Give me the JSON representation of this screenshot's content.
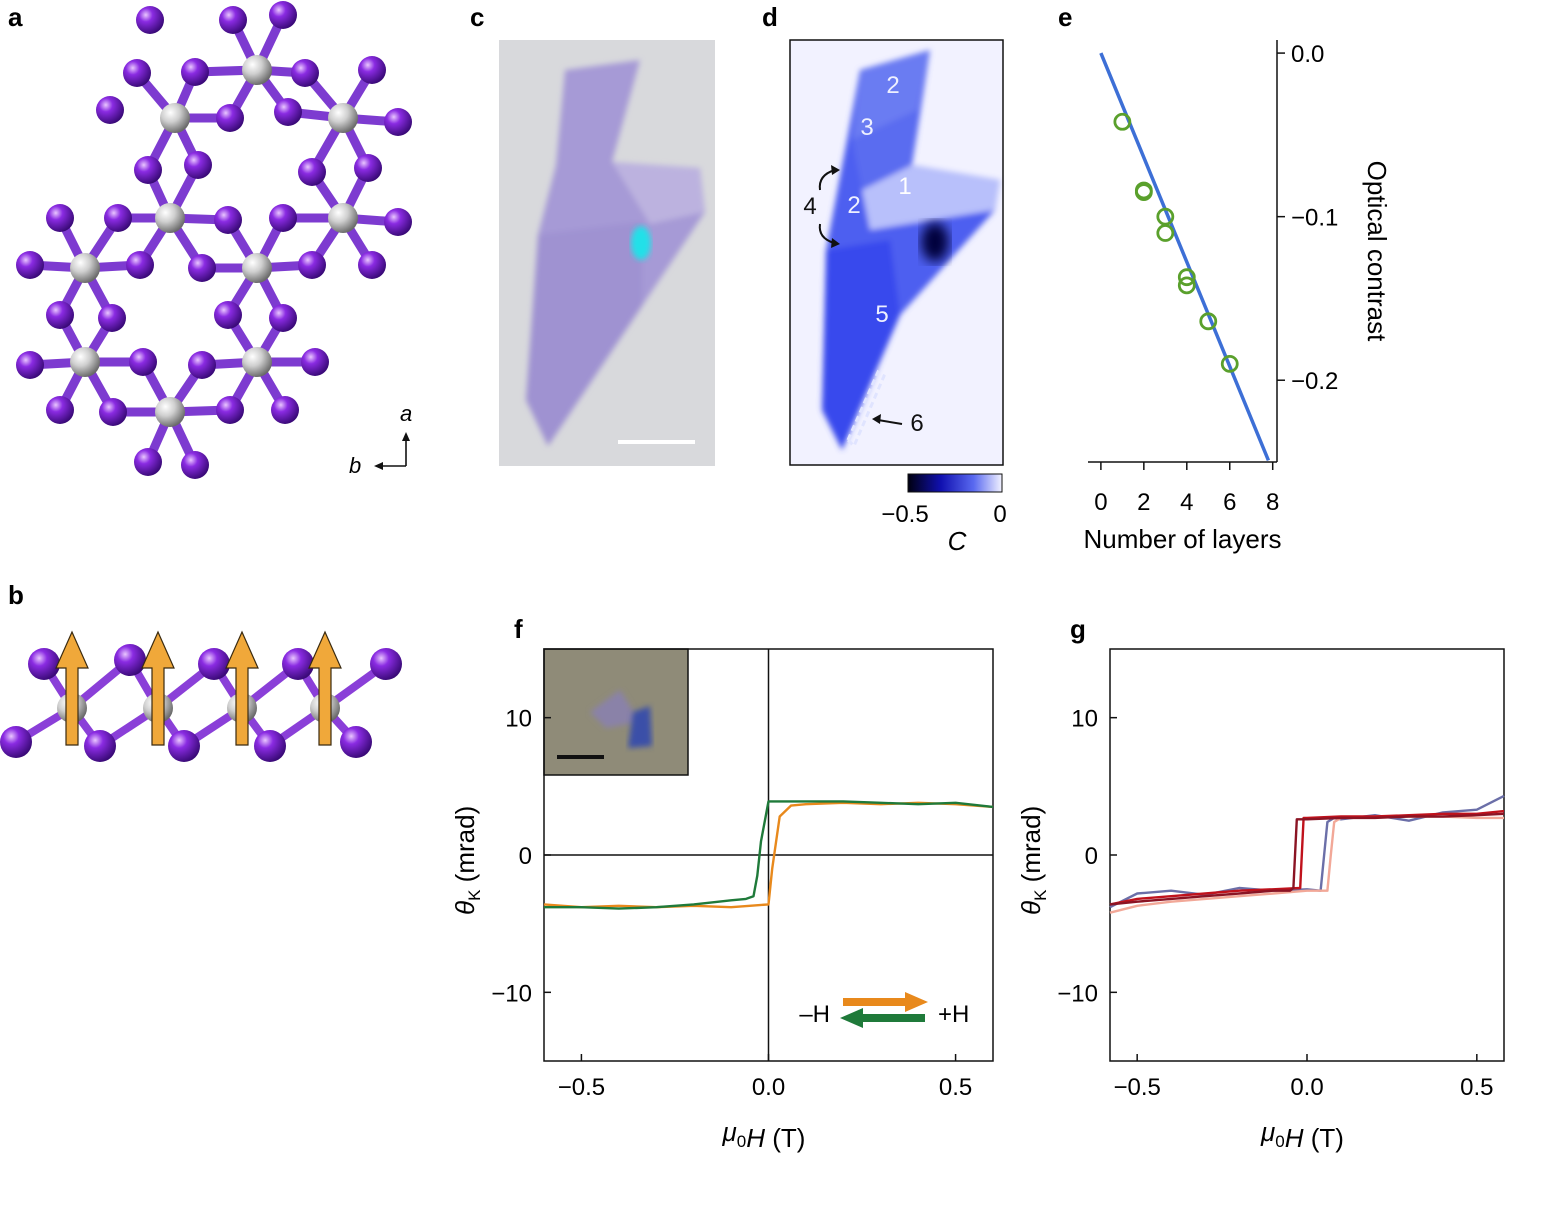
{
  "panel_labels": {
    "a": "a",
    "b": "b",
    "c": "c",
    "d": "d",
    "e": "e",
    "f": "f",
    "g": "g"
  },
  "panel_a": {
    "axis_a": "a",
    "axis_b": "b"
  },
  "panel_d": {
    "region_labels": [
      "2",
      "3",
      "1",
      "2",
      "4",
      "5",
      "6"
    ],
    "colorbar_ticks": [
      "−0.5",
      "0"
    ],
    "colorbar_label": "C"
  },
  "colors": {
    "iodine": "#7a22d6",
    "chromium": "#c8c8c8",
    "spin_arrow": "#f0a83a",
    "fit_line": "#3d6fd6",
    "marker": "#5aa02c",
    "sweep_up": "#e8891c",
    "sweep_down": "#1f7a3a"
  },
  "chart_data": [
    {
      "panel": "e",
      "type": "scatter",
      "xlabel": "Number of layers",
      "ylabel": "Optical contrast",
      "xlim": [
        -0.6,
        8.2
      ],
      "ylim": [
        -0.25,
        0.008
      ],
      "xticks": [
        "0",
        "2",
        "4",
        "6",
        "8"
      ],
      "yticks": [
        "0.0",
        "−0.1",
        "−0.2"
      ],
      "points": {
        "x": [
          1,
          2,
          2,
          3,
          3,
          4,
          4,
          5,
          6
        ],
        "y": [
          -0.042,
          -0.084,
          -0.085,
          -0.1,
          -0.11,
          -0.137,
          -0.142,
          -0.164,
          -0.19
        ]
      },
      "fit_line": {
        "x": [
          0,
          7.8
        ],
        "y": [
          0.0,
          -0.249
        ]
      }
    },
    {
      "panel": "f",
      "type": "line",
      "xlabel": "μ0H (T)",
      "ylabel": "θK (mrad)",
      "xlim": [
        -0.6,
        0.6
      ],
      "ylim": [
        -15,
        15
      ],
      "xticks": [
        "−0.5",
        "0.0",
        "0.5"
      ],
      "yticks": [
        "10",
        "0",
        "−10"
      ],
      "legend": {
        "left": "–H",
        "right": "+H"
      },
      "series": [
        {
          "x": [
            -0.6,
            -0.5,
            -0.4,
            -0.3,
            -0.2,
            -0.1,
            -0.05,
            0.0,
            0.01,
            0.03,
            0.06,
            0.1,
            0.2,
            0.3,
            0.4,
            0.5,
            0.6
          ],
          "y": [
            -3.6,
            -3.8,
            -3.7,
            -3.8,
            -3.7,
            -3.8,
            -3.7,
            -3.6,
            -1.0,
            2.8,
            3.6,
            3.7,
            3.8,
            3.7,
            3.8,
            3.7,
            3.5
          ]
        },
        {
          "x": [
            0.6,
            0.5,
            0.4,
            0.3,
            0.2,
            0.1,
            0.05,
            0.0,
            -0.02,
            -0.03,
            -0.04,
            -0.06,
            -0.1,
            -0.2,
            -0.3,
            -0.4,
            -0.5,
            -0.6
          ],
          "y": [
            3.5,
            3.8,
            3.7,
            3.8,
            3.9,
            3.9,
            3.9,
            3.9,
            1.0,
            -1.5,
            -3.0,
            -3.2,
            -3.3,
            -3.6,
            -3.8,
            -3.9,
            -3.8,
            -3.8
          ]
        }
      ]
    },
    {
      "panel": "g",
      "type": "line",
      "xlabel": "μ0H (T)",
      "ylabel": "θK (mrad)",
      "xlim": [
        -0.58,
        0.58
      ],
      "ylim": [
        -15,
        15
      ],
      "xticks": [
        "−0.5",
        "0.0",
        "0.5"
      ],
      "yticks": [
        "10",
        "0",
        "−10"
      ],
      "series": [
        {
          "color": "#6b6fa8",
          "x": [
            -0.58,
            -0.5,
            -0.4,
            -0.3,
            -0.2,
            -0.1,
            0.0,
            0.04,
            0.06,
            0.08,
            0.1,
            0.2,
            0.3,
            0.4,
            0.5,
            0.58
          ],
          "y": [
            -3.8,
            -2.8,
            -2.6,
            -2.9,
            -2.4,
            -2.6,
            -2.5,
            -2.6,
            2.4,
            2.7,
            2.6,
            2.9,
            2.5,
            3.1,
            3.3,
            4.3
          ]
        },
        {
          "color": "#f2a898",
          "x": [
            -0.58,
            -0.5,
            -0.4,
            -0.3,
            -0.2,
            -0.1,
            0.0,
            0.06,
            0.07,
            0.08,
            0.1,
            0.2,
            0.3,
            0.4,
            0.5,
            0.58
          ],
          "y": [
            -4.2,
            -3.7,
            -3.4,
            -3.2,
            -3.0,
            -2.8,
            -2.6,
            -2.6,
            0.0,
            2.4,
            2.7,
            2.8,
            2.8,
            2.8,
            2.7,
            2.7
          ]
        },
        {
          "color": "#c0121c",
          "x": [
            -0.58,
            -0.5,
            -0.4,
            -0.3,
            -0.2,
            -0.1,
            -0.02,
            -0.01,
            0.0,
            0.1,
            0.2,
            0.3,
            0.4,
            0.5,
            0.58
          ],
          "y": [
            -3.6,
            -3.2,
            -3.0,
            -2.8,
            -2.6,
            -2.5,
            -2.4,
            2.7,
            2.7,
            2.8,
            2.8,
            2.9,
            3.0,
            3.0,
            3.2
          ]
        },
        {
          "color": "#8b1424",
          "x": [
            0.58,
            0.5,
            0.4,
            0.3,
            0.2,
            0.1,
            0.0,
            -0.03,
            -0.04,
            -0.05,
            -0.1,
            -0.2,
            -0.3,
            -0.4,
            -0.5,
            -0.58
          ],
          "y": [
            3.0,
            2.9,
            2.8,
            2.8,
            2.7,
            2.7,
            2.6,
            2.6,
            -2.4,
            -2.6,
            -2.6,
            -2.8,
            -3.0,
            -3.2,
            -3.4,
            -3.6
          ]
        }
      ]
    }
  ]
}
